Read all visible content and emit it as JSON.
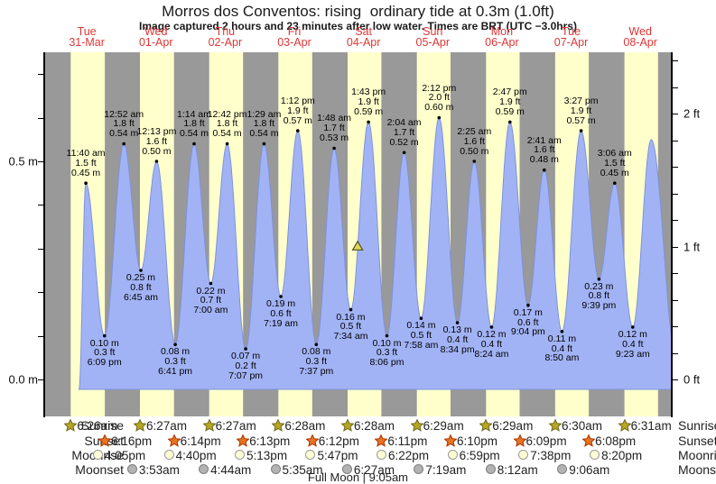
{
  "title": "Morros dos Conventos: rising  ordinary tide at 0.3m (1.0ft)",
  "subtitle": "Image captured 2 hours and 23 minutes after low water. Times are BRT (UTC −3.0hrs)",
  "colors": {
    "night_band": "#999999",
    "day_band": "#ffffcc",
    "tide_fill": "#a2b3f5",
    "tide_stroke": "#7d92e0",
    "day_label_red": "#e03535",
    "axis_black": "#000000",
    "sunrise_star_fill": "#b5a623",
    "sunrise_star_stroke": "#6f671a",
    "sunset_star_fill": "#e8731f",
    "sunset_star_stroke": "#a83200",
    "moonrise_circle_fill": "#ffffd6",
    "moonrise_circle_stroke": "#9a9a9a",
    "moonset_circle_fill": "#b3b3b3",
    "moonset_circle_stroke": "#7f7f7f",
    "marker_fill": "#ddd75a",
    "marker_stroke": "#55521a"
  },
  "chart_data": {
    "type": "area",
    "title": "Morros dos Conventos: rising  ordinary tide at 0.3m (1.0ft)",
    "days": [
      {
        "name": "Tue",
        "date": "31-Mar"
      },
      {
        "name": "Wed",
        "date": "01-Apr"
      },
      {
        "name": "Thu",
        "date": "02-Apr"
      },
      {
        "name": "Fri",
        "date": "03-Apr"
      },
      {
        "name": "Sat",
        "date": "04-Apr"
      },
      {
        "name": "Sun",
        "date": "05-Apr"
      },
      {
        "name": "Mon",
        "date": "06-Apr"
      },
      {
        "name": "Tue",
        "date": "07-Apr"
      },
      {
        "name": "Wed",
        "date": "08-Apr"
      }
    ],
    "left_axis": {
      "unit": "m",
      "tick_step": 0.1,
      "labels": [
        {
          "text": "0.5 m",
          "value": 0.5
        },
        {
          "text": "0.0 m",
          "value": 0.0
        }
      ]
    },
    "right_axis": {
      "unit": "ft",
      "tick_step": 0.2,
      "labels": [
        {
          "text": "2 ft",
          "value": 2
        },
        {
          "text": "1 ft",
          "value": 1
        },
        {
          "text": "0 ft",
          "value": 0
        }
      ]
    },
    "tide_events": [
      {
        "kind": "high",
        "day": 0,
        "time": "11:40 am",
        "ft": "1.5 ft",
        "m": "0.45 m"
      },
      {
        "kind": "low",
        "day": 0,
        "time": "6:09 pm",
        "ft": "0.3 ft",
        "m": "0.10 m"
      },
      {
        "kind": "high",
        "day": 1,
        "time": "12:52 am",
        "ft": "1.8 ft",
        "m": "0.54 m"
      },
      {
        "kind": "low",
        "day": 1,
        "time": "6:45 am",
        "ft": "0.8 ft",
        "m": "0.25 m"
      },
      {
        "kind": "high",
        "day": 1,
        "time": "12:13 pm",
        "ft": "1.6 ft",
        "m": "0.50 m"
      },
      {
        "kind": "low",
        "day": 1,
        "time": "6:41 pm",
        "ft": "0.3 ft",
        "m": "0.08 m"
      },
      {
        "kind": "high",
        "day": 2,
        "time": "1:14 am",
        "ft": "1.8 ft",
        "m": "0.54 m"
      },
      {
        "kind": "low",
        "day": 2,
        "time": "7:00 am",
        "ft": "0.7 ft",
        "m": "0.22 m"
      },
      {
        "kind": "high",
        "day": 2,
        "time": "12:42 pm",
        "ft": "1.8 ft",
        "m": "0.54 m"
      },
      {
        "kind": "low",
        "day": 2,
        "time": "7:07 pm",
        "ft": "0.2 ft",
        "m": "0.07 m"
      },
      {
        "kind": "high",
        "day": 3,
        "time": "1:29 am",
        "ft": "1.8 ft",
        "m": "0.54 m"
      },
      {
        "kind": "low",
        "day": 3,
        "time": "7:19 am",
        "ft": "0.6 ft",
        "m": "0.19 m"
      },
      {
        "kind": "high",
        "day": 3,
        "time": "1:12 pm",
        "ft": "1.9 ft",
        "m": "0.57 m"
      },
      {
        "kind": "low",
        "day": 3,
        "time": "7:37 pm",
        "ft": "0.3 ft",
        "m": "0.08 m"
      },
      {
        "kind": "high",
        "day": 4,
        "time": "1:48 am",
        "ft": "1.7 ft",
        "m": "0.53 m"
      },
      {
        "kind": "low",
        "day": 4,
        "time": "7:34 am",
        "ft": "0.5 ft",
        "m": "0.16 m"
      },
      {
        "kind": "high",
        "day": 4,
        "time": "1:43 pm",
        "ft": "1.9 ft",
        "m": "0.59 m"
      },
      {
        "kind": "low",
        "day": 4,
        "time": "8:06 pm",
        "ft": "0.3 ft",
        "m": "0.10 m"
      },
      {
        "kind": "high",
        "day": 5,
        "time": "2:04 am",
        "ft": "1.7 ft",
        "m": "0.52 m"
      },
      {
        "kind": "low",
        "day": 5,
        "time": "7:58 am",
        "ft": "0.5 ft",
        "m": "0.14 m"
      },
      {
        "kind": "high",
        "day": 5,
        "time": "2:12 pm",
        "ft": "2.0 ft",
        "m": "0.60 m"
      },
      {
        "kind": "low",
        "day": 5,
        "time": "8:34 pm",
        "ft": "0.4 ft",
        "m": "0.13 m"
      },
      {
        "kind": "high",
        "day": 6,
        "time": "2:25 am",
        "ft": "1.6 ft",
        "m": "0.50 m"
      },
      {
        "kind": "low",
        "day": 6,
        "time": "8:24 am",
        "ft": "0.4 ft",
        "m": "0.12 m"
      },
      {
        "kind": "high",
        "day": 6,
        "time": "2:47 pm",
        "ft": "1.9 ft",
        "m": "0.59 m"
      },
      {
        "kind": "low",
        "day": 6,
        "time": "9:04 pm",
        "ft": "0.6 ft",
        "m": "0.17 m"
      },
      {
        "kind": "high",
        "day": 7,
        "time": "2:41 am",
        "ft": "1.6 ft",
        "m": "0.48 m"
      },
      {
        "kind": "low",
        "day": 7,
        "time": "8:50 am",
        "ft": "0.4 ft",
        "m": "0.11 m"
      },
      {
        "kind": "high",
        "day": 7,
        "time": "3:27 pm",
        "ft": "1.9 ft",
        "m": "0.57 m"
      },
      {
        "kind": "low",
        "day": 7,
        "time": "9:39 pm",
        "ft": "0.8 ft",
        "m": "0.23 m"
      },
      {
        "kind": "high",
        "day": 8,
        "time": "3:06 am",
        "ft": "1.5 ft",
        "m": "0.45 m"
      },
      {
        "kind": "low",
        "day": 8,
        "time": "9:23 am",
        "ft": "0.4 ft",
        "m": "0.12 m"
      }
    ],
    "current_marker": {
      "m": 0.3,
      "day": 4,
      "time": "9:57 am"
    },
    "sun_moon": {
      "rows": [
        {
          "label": "Sunrise",
          "icon": "sunrise-star",
          "entries": [
            {
              "day": 0,
              "time": "6:26am"
            },
            {
              "day": 1,
              "time": "6:27am"
            },
            {
              "day": 2,
              "time": "6:27am"
            },
            {
              "day": 3,
              "time": "6:28am"
            },
            {
              "day": 4,
              "time": "6:28am"
            },
            {
              "day": 5,
              "time": "6:29am"
            },
            {
              "day": 6,
              "time": "6:29am"
            },
            {
              "day": 7,
              "time": "6:30am"
            },
            {
              "day": 8,
              "time": "6:31am"
            }
          ]
        },
        {
          "label": "Sunset",
          "icon": "sunset-star",
          "entries": [
            {
              "day": 0,
              "time": "6:16pm"
            },
            {
              "day": 1,
              "time": "6:14pm"
            },
            {
              "day": 2,
              "time": "6:13pm"
            },
            {
              "day": 3,
              "time": "6:12pm"
            },
            {
              "day": 4,
              "time": "6:11pm"
            },
            {
              "day": 5,
              "time": "6:10pm"
            },
            {
              "day": 6,
              "time": "6:09pm"
            },
            {
              "day": 7,
              "time": "6:08pm"
            }
          ]
        },
        {
          "label": "Moonrise",
          "icon": "moonrise-circle",
          "entries": [
            {
              "day": 0,
              "time": "4:05pm"
            },
            {
              "day": 1,
              "time": "4:40pm"
            },
            {
              "day": 2,
              "time": "5:13pm"
            },
            {
              "day": 3,
              "time": "5:47pm"
            },
            {
              "day": 4,
              "time": "6:22pm"
            },
            {
              "day": 5,
              "time": "6:59pm"
            },
            {
              "day": 6,
              "time": "7:38pm"
            },
            {
              "day": 7,
              "time": "8:20pm"
            }
          ]
        },
        {
          "label": "Moonset",
          "icon": "moonset-circle",
          "entries": [
            {
              "day": 1,
              "time": "3:53am"
            },
            {
              "day": 2,
              "time": "4:44am"
            },
            {
              "day": 3,
              "time": "5:35am"
            },
            {
              "day": 4,
              "time": "6:27am"
            },
            {
              "day": 5,
              "time": "7:19am"
            },
            {
              "day": 6,
              "time": "8:12am"
            },
            {
              "day": 7,
              "time": "9:06am"
            }
          ]
        }
      ],
      "moon_phase": "Full Moon | 9:05am"
    }
  }
}
